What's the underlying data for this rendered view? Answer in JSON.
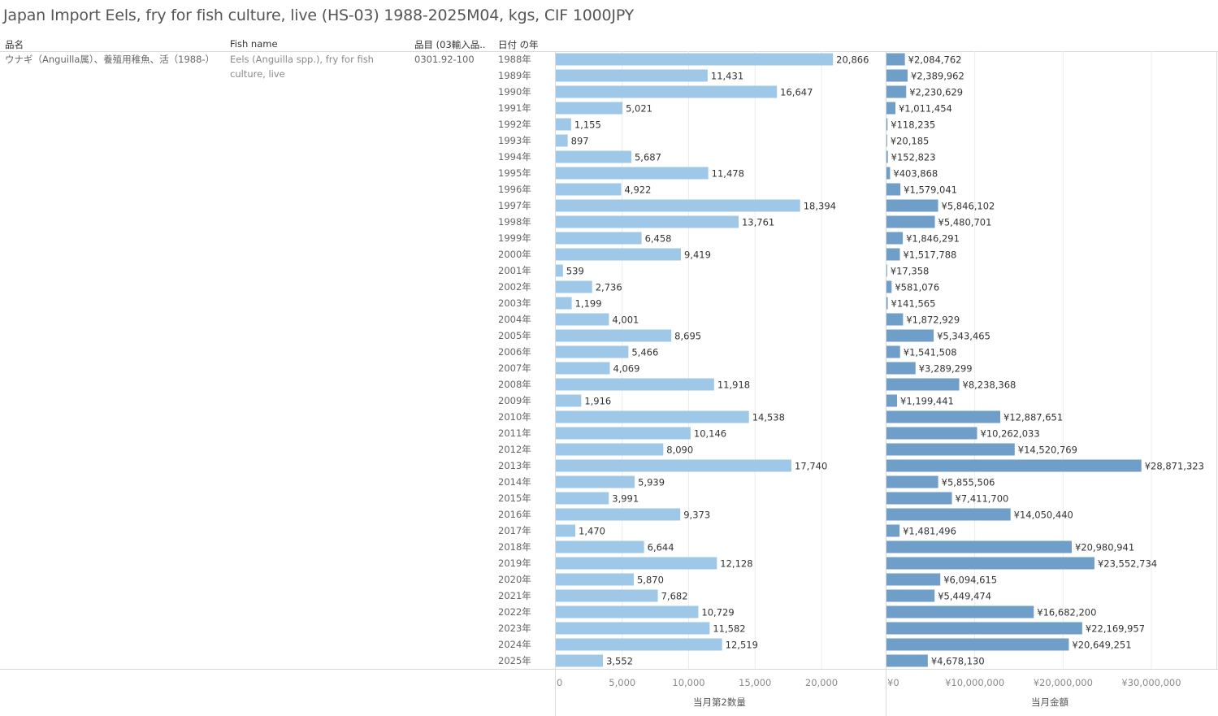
{
  "title": "Japan Import Eels, fry for fish culture, live (HS-03) 1988-2025M04, kgs, CIF 1000JPY",
  "headers": {
    "product_name_jp": "品名",
    "fish_name": "Fish name",
    "item_code": "品目 (03輸入品..",
    "year": "日付 の年"
  },
  "row": {
    "product_name_jp": "ウナギ（Anguilla属）、養殖用稚魚、活（1988-）",
    "fish_name": "Eels (Anguilla spp.), fry for fish culture, live",
    "item_code": "0301.92-100"
  },
  "colors": {
    "quantity_bar": "#9fc8e8",
    "value_bar": "#6f9ec9",
    "grid": "#ececec",
    "divider": "#d9d9d9"
  },
  "chart_data": [
    {
      "type": "bar",
      "orientation": "horizontal",
      "xlabel": "当月第2数量",
      "xlim": [
        0,
        25000
      ],
      "ticks": [
        0,
        5000,
        10000,
        15000,
        20000
      ],
      "tick_labels": [
        "0",
        "5,000",
        "10,000",
        "15,000",
        "20,000"
      ],
      "categories": [
        "1988年",
        "1989年",
        "1990年",
        "1991年",
        "1992年",
        "1993年",
        "1994年",
        "1995年",
        "1996年",
        "1997年",
        "1998年",
        "1999年",
        "2000年",
        "2001年",
        "2002年",
        "2003年",
        "2004年",
        "2005年",
        "2006年",
        "2007年",
        "2008年",
        "2009年",
        "2010年",
        "2011年",
        "2012年",
        "2013年",
        "2014年",
        "2015年",
        "2016年",
        "2017年",
        "2018年",
        "2019年",
        "2020年",
        "2021年",
        "2022年",
        "2023年",
        "2024年",
        "2025年"
      ],
      "values": [
        20866,
        11431,
        16647,
        5021,
        1155,
        897,
        5687,
        11478,
        4922,
        18394,
        13761,
        6458,
        9419,
        539,
        2736,
        1199,
        4001,
        8695,
        5466,
        4069,
        11918,
        1916,
        14538,
        10146,
        8090,
        17740,
        5939,
        3991,
        9373,
        1470,
        6644,
        12128,
        5870,
        7682,
        10729,
        11582,
        12519,
        3552
      ],
      "data_labels": [
        "20,866",
        "11,431",
        "16,647",
        "5,021",
        "1,155",
        "897",
        "5,687",
        "11,478",
        "4,922",
        "18,394",
        "13,761",
        "6,458",
        "9,419",
        "539",
        "2,736",
        "1,199",
        "4,001",
        "8,695",
        "5,466",
        "4,069",
        "11,918",
        "1,916",
        "14,538",
        "10,146",
        "8,090",
        "17,740",
        "5,939",
        "3,991",
        "9,373",
        "1,470",
        "6,644",
        "12,128",
        "5,870",
        "7,682",
        "10,729",
        "11,582",
        "12,519",
        "3,552"
      ]
    },
    {
      "type": "bar",
      "orientation": "horizontal",
      "xlabel": "当月金額",
      "xlim": [
        0,
        37000000
      ],
      "ticks": [
        0,
        10000000,
        20000000,
        30000000
      ],
      "tick_labels": [
        "¥0",
        "¥10,000,000",
        "¥20,000,000",
        "¥30,000,000"
      ],
      "categories": [
        "1988年",
        "1989年",
        "1990年",
        "1991年",
        "1992年",
        "1993年",
        "1994年",
        "1995年",
        "1996年",
        "1997年",
        "1998年",
        "1999年",
        "2000年",
        "2001年",
        "2002年",
        "2003年",
        "2004年",
        "2005年",
        "2006年",
        "2007年",
        "2008年",
        "2009年",
        "2010年",
        "2011年",
        "2012年",
        "2013年",
        "2014年",
        "2015年",
        "2016年",
        "2017年",
        "2018年",
        "2019年",
        "2020年",
        "2021年",
        "2022年",
        "2023年",
        "2024年",
        "2025年"
      ],
      "values": [
        2084762,
        2389962,
        2230629,
        1011454,
        118235,
        20185,
        152823,
        403868,
        1579041,
        5846102,
        5480701,
        1846291,
        1517788,
        17358,
        581076,
        141565,
        1872929,
        5343465,
        1541508,
        3289299,
        8238368,
        1199441,
        12887651,
        10262033,
        14520769,
        28871323,
        5855506,
        7411700,
        14050440,
        1481496,
        20980941,
        23552734,
        6094615,
        5449474,
        16682200,
        22169957,
        20649251,
        4678130
      ],
      "data_labels": [
        "¥2,084,762",
        "¥2,389,962",
        "¥2,230,629",
        "¥1,011,454",
        "¥118,235",
        "¥20,185",
        "¥152,823",
        "¥403,868",
        "¥1,579,041",
        "¥5,846,102",
        "¥5,480,701",
        "¥1,846,291",
        "¥1,517,788",
        "¥17,358",
        "¥581,076",
        "¥141,565",
        "¥1,872,929",
        "¥5,343,465",
        "¥1,541,508",
        "¥3,289,299",
        "¥8,238,368",
        "¥1,199,441",
        "¥12,887,651",
        "¥10,262,033",
        "¥14,520,769",
        "¥28,871,323",
        "¥5,855,506",
        "¥7,411,700",
        "¥14,050,440",
        "¥1,481,496",
        "¥20,980,941",
        "¥23,552,734",
        "¥6,094,615",
        "¥5,449,474",
        "¥16,682,200",
        "¥22,169,957",
        "¥20,649,251",
        "¥4,678,130"
      ]
    }
  ]
}
